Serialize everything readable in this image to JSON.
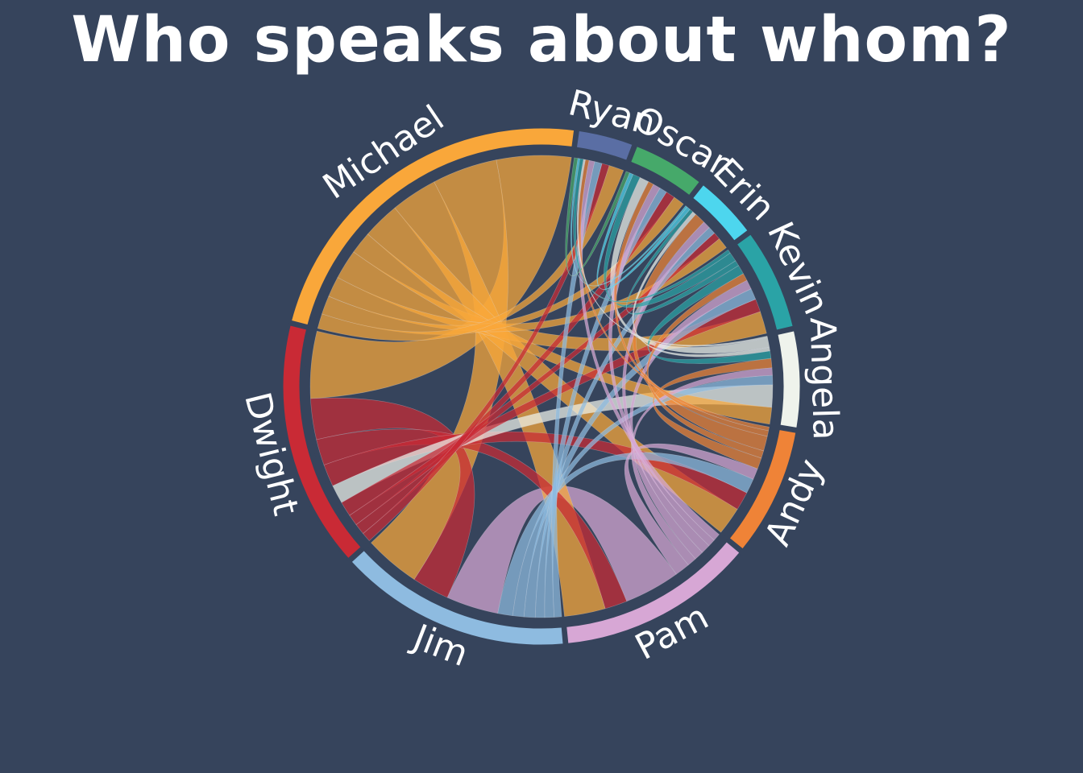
{
  "chart_data": {
    "type": "chord",
    "title": "Who speaks about whom?",
    "groups": [
      {
        "name": "Michael",
        "color": "#f9a73a"
      },
      {
        "name": "Dwight",
        "color": "#c92a35"
      },
      {
        "name": "Jim",
        "color": "#8ebbe0"
      },
      {
        "name": "Pam",
        "color": "#d7a7d5"
      },
      {
        "name": "Andy",
        "color": "#ef8337"
      },
      {
        "name": "Angela",
        "color": "#eff3ec"
      },
      {
        "name": "Kevin",
        "color": "#2aa3a6"
      },
      {
        "name": "Erin",
        "color": "#4dd6ee"
      },
      {
        "name": "Oscar",
        "color": "#46a96a"
      },
      {
        "name": "Ryan",
        "color": "#5a6ea4"
      }
    ],
    "matrix": [
      [
        0,
        40,
        35,
        25,
        20,
        12,
        16,
        11,
        10,
        8
      ],
      [
        36,
        0,
        22,
        14,
        12,
        10,
        8,
        6,
        6,
        5
      ],
      [
        30,
        20,
        0,
        28,
        8,
        6,
        6,
        5,
        5,
        4
      ],
      [
        22,
        12,
        30,
        0,
        8,
        5,
        5,
        5,
        4,
        4
      ],
      [
        15,
        10,
        8,
        6,
        0,
        6,
        4,
        8,
        3,
        2
      ],
      [
        9,
        12,
        5,
        4,
        5,
        0,
        4,
        2,
        5,
        1
      ],
      [
        12,
        7,
        6,
        5,
        4,
        5,
        0,
        3,
        5,
        2
      ],
      [
        6,
        4,
        4,
        4,
        6,
        2,
        2,
        0,
        2,
        1
      ],
      [
        6,
        5,
        4,
        4,
        3,
        5,
        4,
        2,
        0,
        2
      ],
      [
        8,
        4,
        4,
        3,
        2,
        1,
        2,
        1,
        2,
        0
      ]
    ]
  }
}
